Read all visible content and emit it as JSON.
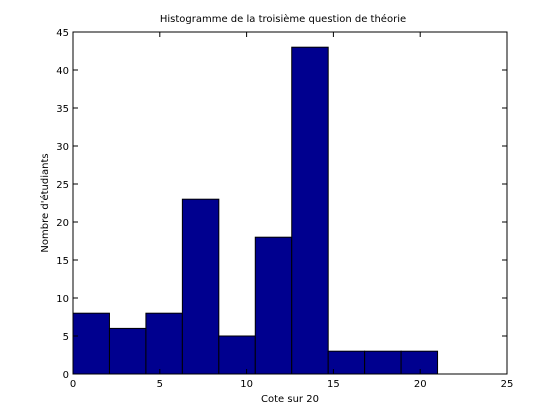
{
  "chart_data": {
    "type": "bar",
    "title": "Histogramme de la troisième question de théorie",
    "xlabel": "Cote sur 20",
    "ylabel": "Nombre d'étudiants",
    "xlim": [
      0,
      25
    ],
    "ylim": [
      0,
      45
    ],
    "xticks": [
      0,
      5,
      10,
      15,
      20,
      25
    ],
    "yticks": [
      0,
      5,
      10,
      15,
      20,
      25,
      30,
      35,
      40,
      45
    ],
    "bin_width": 2.1,
    "bins": [
      {
        "x0": 0.0,
        "x1": 2.1,
        "value": 8
      },
      {
        "x0": 2.1,
        "x1": 4.2,
        "value": 6
      },
      {
        "x0": 4.2,
        "x1": 6.3,
        "value": 8
      },
      {
        "x0": 6.3,
        "x1": 8.4,
        "value": 23
      },
      {
        "x0": 8.4,
        "x1": 10.5,
        "value": 5
      },
      {
        "x0": 10.5,
        "x1": 12.6,
        "value": 18
      },
      {
        "x0": 12.6,
        "x1": 14.7,
        "value": 43
      },
      {
        "x0": 14.7,
        "x1": 16.8,
        "value": 3
      },
      {
        "x0": 16.8,
        "x1": 18.9,
        "value": 3
      },
      {
        "x0": 18.9,
        "x1": 21.0,
        "value": 3
      }
    ],
    "bar_color": "#00008f",
    "grid": false
  }
}
